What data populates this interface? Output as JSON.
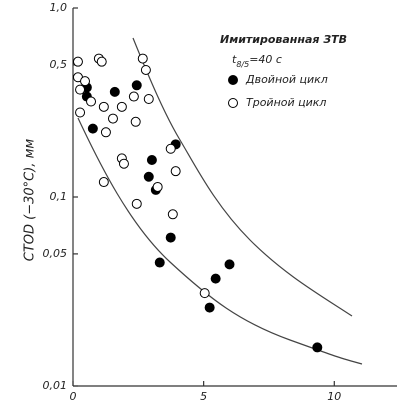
{
  "chart_data": {
    "type": "scatter",
    "y_label": "CTOD (−30°C), мм",
    "legend_title": "Имитированная ЗТВ",
    "annotation": [
      "t",
      "8/5",
      "=40 c"
    ],
    "log_y": true,
    "xlim": [
      0,
      12.4
    ],
    "xticks": [
      0,
      5,
      10
    ],
    "ylim": [
      0.01,
      1.0
    ],
    "yticks": [
      {
        "value": 0.01,
        "label": "0,01"
      },
      {
        "value": 0.05,
        "label": "0,05"
      },
      {
        "value": 0.1,
        "label": "0,1"
      },
      {
        "value": 0.5,
        "label": "0,5"
      },
      {
        "value": 1.0,
        "label": "1,0"
      }
    ],
    "series": [
      {
        "name": "Двойной цикл",
        "color": "#000000",
        "filled": true,
        "x": [
          0.53,
          0.53,
          0.76,
          1.6,
          2.44,
          3.93,
          3.02,
          2.9,
          3.17,
          3.74,
          3.32,
          5.46,
          5.99,
          5.23,
          9.35
        ],
        "values": [
          0.38,
          0.34,
          0.23,
          0.36,
          0.39,
          0.19,
          0.157,
          0.128,
          0.109,
          0.061,
          0.045,
          0.037,
          0.044,
          0.026,
          0.016
        ]
      },
      {
        "name": "Тройной цикл",
        "color": "#000000",
        "filled": false,
        "x": [
          0.19,
          0.19,
          0.27,
          0.27,
          0.46,
          0.69,
          0.99,
          1.1,
          1.18,
          1.26,
          1.53,
          1.87,
          1.87,
          1.95,
          1.18,
          2.33,
          2.4,
          2.67,
          2.79,
          2.9,
          2.44,
          3.24,
          3.74,
          3.82,
          3.93,
          5.04
        ],
        "values": [
          0.52,
          0.43,
          0.37,
          0.28,
          0.41,
          0.32,
          0.54,
          0.52,
          0.3,
          0.22,
          0.26,
          0.3,
          0.16,
          0.15,
          0.12,
          0.34,
          0.25,
          0.54,
          0.47,
          0.33,
          0.092,
          0.113,
          0.18,
          0.081,
          0.137,
          0.031
        ]
      }
    ]
  }
}
